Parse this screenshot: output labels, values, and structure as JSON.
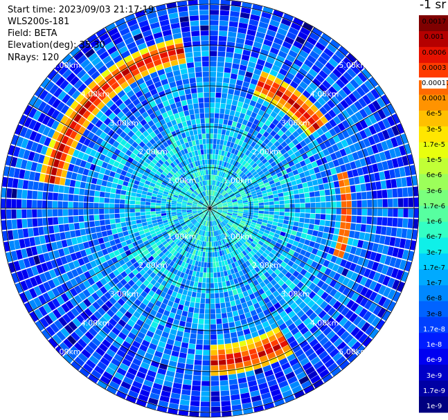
{
  "info": {
    "start_time": "Start time: 2023/09/03 21:17:19",
    "instrument": "WLS200s-181",
    "field": "Field: BETA",
    "elevation": "Elevation(deg): 35.30",
    "nrays": "NRays: 120"
  },
  "colorbar": {
    "unit_header": "-1 sr",
    "ticks": [
      "0.0017",
      "0.001",
      "0.0006",
      "0.0003",
      "0.00017",
      "0.0001",
      "6e-5",
      "3e-5",
      "1.7e-5",
      "1e-5",
      "6e-6",
      "3e-6",
      "1.7e-6",
      "1e-6",
      "6e-7",
      "3e-7",
      "1.7e-7",
      "1e-7",
      "6e-8",
      "3e-8",
      "1.7e-8",
      "1e-8",
      "6e-9",
      "3e-9",
      "1.7e-9",
      "1e-9"
    ],
    "colors": [
      "#7f0000",
      "#b50000",
      "#e61100",
      "#ff3c00",
      "#ff6a00",
      "#ff9300",
      "#ffc000",
      "#ffe600",
      "#e9ff0e",
      "#c1ff36",
      "#9cff5a",
      "#7aff7d",
      "#57ffa0",
      "#33ffc4",
      "#0ff0e8",
      "#00cfff",
      "#00aaff",
      "#0088ff",
      "#0063ff",
      "#0041ff",
      "#001cff",
      "#0000f1",
      "#0000c8",
      "#0000a4",
      "#000080"
    ]
  },
  "chart_data": {
    "type": "heatmap",
    "projection": "PPI polar scan",
    "n_rays": 120,
    "range_rings_km": [
      1.0,
      2.0,
      3.0,
      4.0,
      5.0
    ],
    "range_labels": [
      "1.00km",
      "2.00km",
      "3.00km",
      "4.00km",
      "5.00km"
    ],
    "max_range_km": 5.0,
    "spokes_deg": [
      0,
      30,
      60,
      90,
      120,
      150,
      180,
      210,
      240,
      270,
      300,
      330
    ],
    "field": "BETA",
    "scale": "log",
    "value_range": [
      1e-09,
      0.0017
    ],
    "background_level_range": [
      3e-08,
      6e-06
    ],
    "high_backscatter_features": [
      {
        "az_range_deg": [
          -80,
          -10
        ],
        "range_km": [
          3.6,
          4.2
        ],
        "level": "1e-4 to 6e-4"
      },
      {
        "az_range_deg": [
          20,
          55
        ],
        "range_km": [
          3.0,
          3.6
        ],
        "level": "1e-4 to 6e-4"
      },
      {
        "az_range_deg": [
          75,
          110
        ],
        "range_km": [
          3.2,
          3.5
        ],
        "level": "1e-5 to 1e-4"
      },
      {
        "az_range_deg": [
          150,
          200
        ],
        "range_km": [
          3.4,
          4.1
        ],
        "level": "1e-4 to 6e-4"
      }
    ]
  }
}
